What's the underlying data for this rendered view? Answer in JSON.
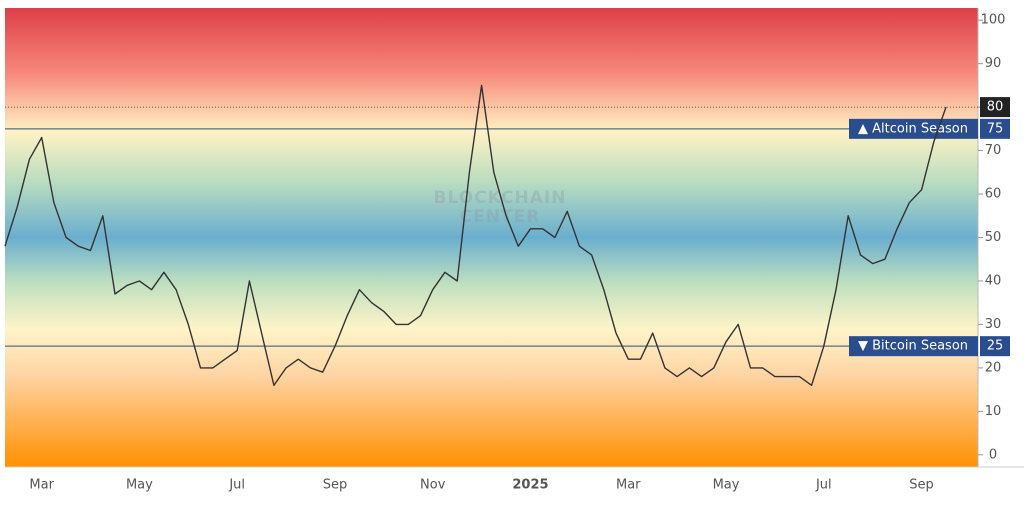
{
  "chart_data": {
    "type": "line",
    "watermark": [
      "BLOCKCHAIN",
      "CENTER"
    ],
    "categories": [
      null,
      null,
      null,
      "Mar",
      null,
      null,
      null,
      null,
      null,
      null,
      null,
      "May",
      null,
      null,
      null,
      null,
      null,
      null,
      null,
      "Jul",
      null,
      null,
      null,
      null,
      null,
      null,
      null,
      "Sep",
      null,
      null,
      null,
      null,
      null,
      null,
      null,
      "Nov",
      null,
      null,
      null,
      null,
      null,
      null,
      null,
      "2025",
      null,
      null,
      null,
      null,
      null,
      null,
      null,
      "Mar",
      null,
      null,
      null,
      null,
      null,
      null,
      null,
      "May",
      null,
      null,
      null,
      null,
      null,
      null,
      null,
      "Jul",
      null,
      null,
      null,
      null,
      null,
      null,
      null,
      "Sep",
      null,
      null
    ],
    "values": [
      48,
      57,
      68,
      73,
      58,
      50,
      48,
      47,
      55,
      37,
      39,
      40,
      38,
      42,
      38,
      30,
      20,
      20,
      22,
      24,
      40,
      28,
      16,
      20,
      22,
      20,
      19,
      25,
      32,
      38,
      35,
      33,
      30,
      30,
      32,
      38,
      42,
      40,
      65,
      85,
      65,
      55,
      48,
      52,
      52,
      50,
      56,
      48,
      46,
      38,
      28,
      22,
      22,
      28,
      20,
      18,
      20,
      18,
      20,
      26,
      30,
      20,
      20,
      18,
      18,
      18,
      16,
      25,
      38,
      55,
      46,
      44,
      45,
      52,
      58,
      61,
      72,
      80
    ],
    "color": "#333333",
    "ylim": [
      -2.8,
      102.8
    ],
    "yticks": [
      0,
      10,
      20,
      30,
      40,
      50,
      60,
      70,
      80,
      90,
      100
    ],
    "thresholds": [
      {
        "label": "▲ Altcoin Season",
        "value": 75
      },
      {
        "label": "▼ Bitcoin Season",
        "value": 25
      }
    ]
  }
}
